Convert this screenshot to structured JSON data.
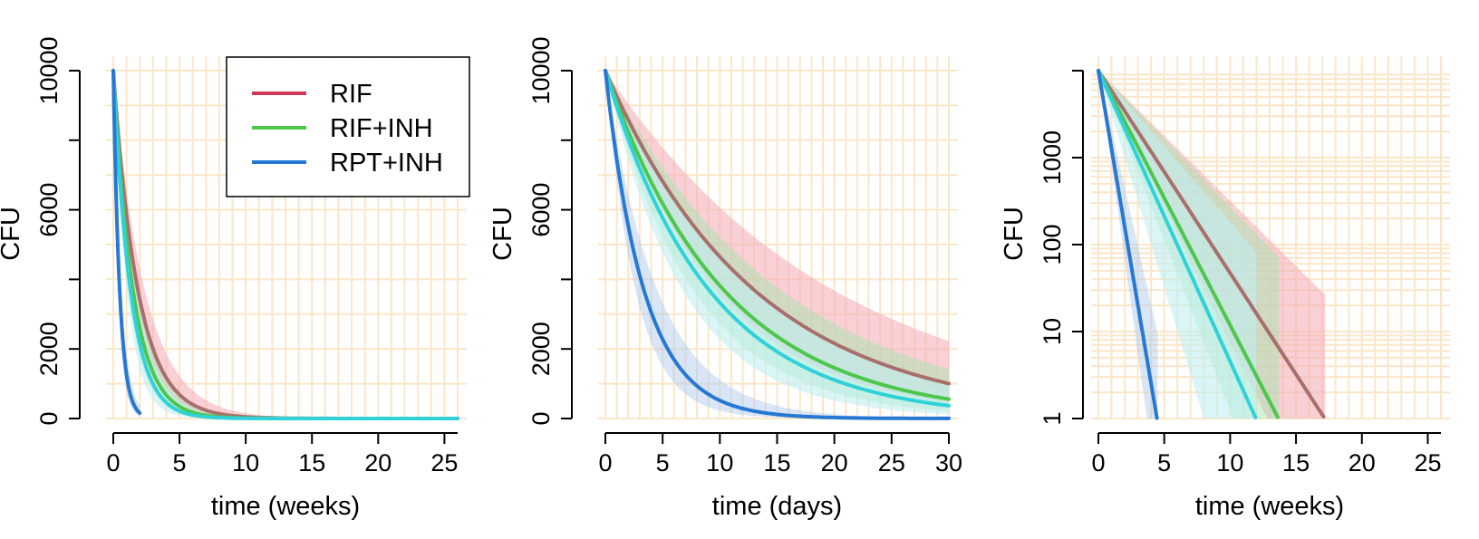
{
  "colors": {
    "RIF": "#cc3b55",
    "RIF+INH": "#4cc74c",
    "RPT+INH": "#2678d4",
    "extra_series": "#2ed2d8",
    "grid": "#fbe6c8",
    "band_outer_RIF": "#f4a9b4",
    "band_outer_RIF+INH": "#9ee6ae",
    "band_outer_RPT+INH": "#a8c8ee",
    "band_inner": "#bfeff2"
  },
  "chart_data": [
    {
      "type": "line",
      "title": "",
      "xlabel": "time (weeks)",
      "ylabel": "CFU",
      "xlim": [
        0,
        26
      ],
      "ylim": [
        0,
        10000
      ],
      "yscale": "linear",
      "x_ticks": [
        "0",
        "5",
        "10",
        "15",
        "20",
        "25"
      ],
      "y_ticks": [
        "0",
        "2000",
        "6000",
        "10000"
      ],
      "grid": true,
      "legend": {
        "position": "top-right",
        "entries": [
          "RIF",
          "RIF+INH",
          "RPT+INH"
        ]
      },
      "series": [
        {
          "name": "RIF",
          "initial": 10000,
          "rate_per_week": 0.536,
          "band_rate": [
            0.42,
            0.68
          ],
          "x_end": 26
        },
        {
          "name": "RIF+INH",
          "initial": 10000,
          "rate_per_week": 0.674,
          "band_rate": [
            0.53,
            0.85
          ],
          "x_end": 26
        },
        {
          "initial": 10000,
          "rate_per_week": 0.77,
          "band_rate": [
            0.6,
            0.97
          ],
          "x_end": 26
        },
        {
          "name": "RPT+INH",
          "initial": 10000,
          "rate_per_week": 2.07,
          "band_rate": [
            1.65,
            2.55
          ],
          "x_end": 2
        }
      ]
    },
    {
      "type": "line",
      "title": "",
      "xlabel": "time (days)",
      "ylabel": "CFU",
      "xlim": [
        0,
        30
      ],
      "ylim": [
        0,
        10000
      ],
      "yscale": "linear",
      "x_ticks": [
        "0",
        "5",
        "10",
        "15",
        "20",
        "25",
        "30"
      ],
      "y_ticks": [
        "0",
        "2000",
        "6000",
        "10000"
      ],
      "grid": true,
      "series": [
        {
          "name": "RIF",
          "initial": 10000,
          "rate_per_day": 0.0766,
          "band_rate": [
            0.05,
            0.103
          ],
          "x_end": 30
        },
        {
          "name": "RIF+INH",
          "initial": 10000,
          "rate_per_day": 0.0963,
          "band_rate": [
            0.065,
            0.13
          ],
          "x_end": 30
        },
        {
          "initial": 10000,
          "rate_per_day": 0.11,
          "band_rate": [
            0.075,
            0.148
          ],
          "x_end": 30
        },
        {
          "name": "RPT+INH",
          "initial": 10000,
          "rate_per_day": 0.296,
          "band_rate": [
            0.22,
            0.38
          ],
          "x_end": 30
        }
      ]
    },
    {
      "type": "line",
      "title": "",
      "xlabel": "time (weeks)",
      "ylabel": "CFU",
      "xlim": [
        0,
        26
      ],
      "ylim": [
        1,
        10000
      ],
      "yscale": "log",
      "x_ticks": [
        "0",
        "5",
        "10",
        "15",
        "20",
        "25"
      ],
      "y_ticks": [
        "1",
        "10",
        "100",
        "1000"
      ],
      "grid": true,
      "series": [
        {
          "name": "RIF",
          "initial": 10000,
          "rate_per_week": 0.536,
          "band_rate": [
            0.345,
            0.72
          ],
          "x_end": 17.2
        },
        {
          "name": "RIF+INH",
          "initial": 10000,
          "rate_per_week": 0.674,
          "band_rate": [
            0.36,
            0.9
          ],
          "x_end": 13.7
        },
        {
          "initial": 10000,
          "rate_per_week": 0.77,
          "band_rate": [
            0.4,
            1.15
          ],
          "x_end": 12
        },
        {
          "name": "RPT+INH",
          "initial": 10000,
          "rate_per_week": 2.07,
          "band_rate": [
            1.55,
            2.5
          ],
          "x_end": 4.5
        }
      ]
    }
  ]
}
